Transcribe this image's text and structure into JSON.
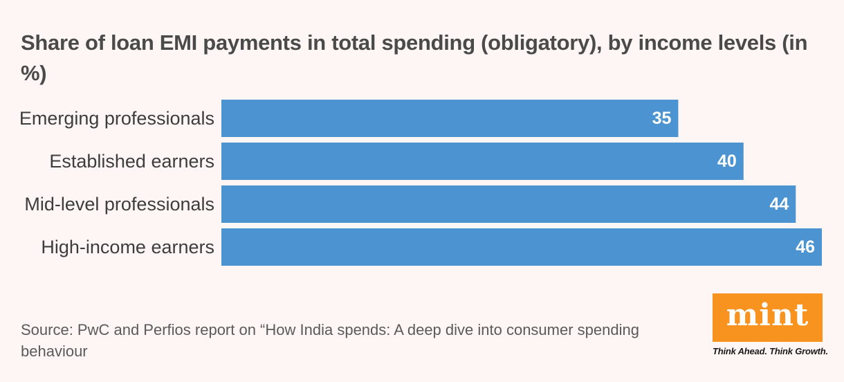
{
  "chart_data": {
    "type": "bar",
    "orientation": "horizontal",
    "title": "Share of loan EMI payments in total spending (obligatory), by income levels (in %)",
    "categories": [
      "Emerging professionals",
      "Established earners",
      "Mid-level professionals",
      "High-income earners"
    ],
    "values": [
      35,
      40,
      44,
      46
    ],
    "xlim": [
      0,
      46
    ],
    "xlabel": "",
    "ylabel": "",
    "grid": false,
    "data_labels": true,
    "bar_color": "#4b93d1"
  },
  "source": "Source: PwC and Perfios report on “How India spends: A deep dive into consumer spending behaviour",
  "logo": {
    "word": "mint",
    "tagline": "Think Ahead. Think Growth.",
    "color": "#f7931e"
  }
}
